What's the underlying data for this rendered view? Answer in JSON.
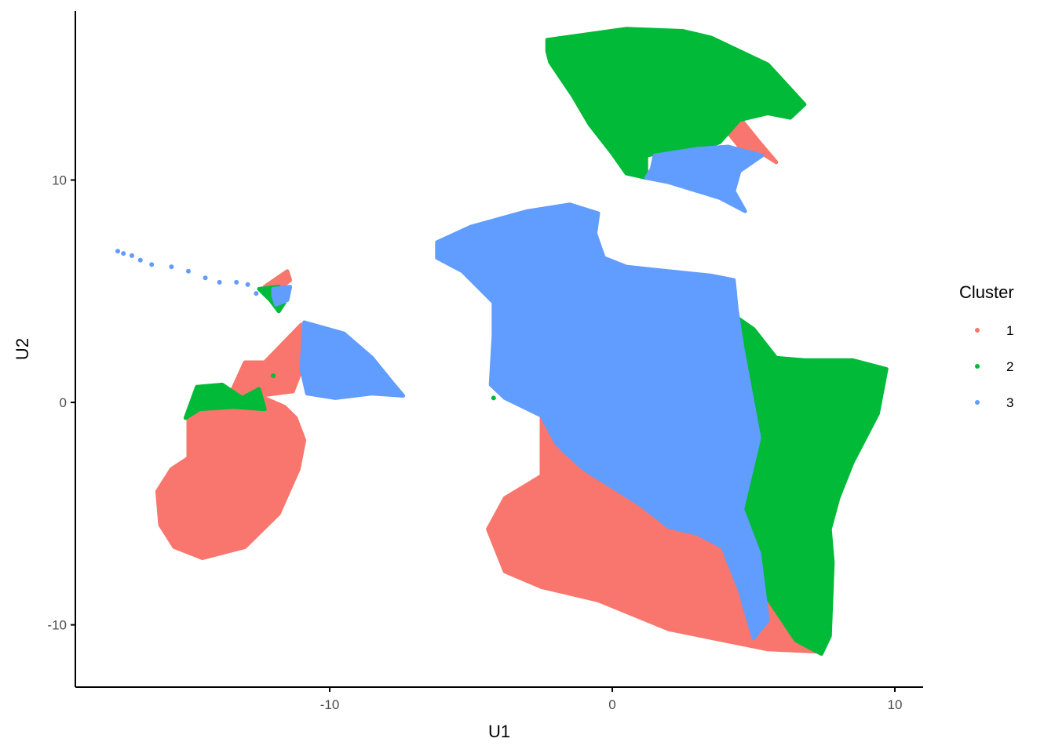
{
  "chart_data": {
    "type": "scatter",
    "xlabel": "U1",
    "ylabel": "U2",
    "xlim": [
      -19,
      11
    ],
    "ylim": [
      -12.8,
      17.6
    ],
    "x_ticks": [
      -10,
      0,
      10
    ],
    "y_ticks": [
      -10,
      0,
      10
    ],
    "x_tick_labels": [
      "-10",
      "0",
      "10"
    ],
    "y_tick_labels": [
      "-10",
      "0",
      "10"
    ],
    "grid": false,
    "legend": {
      "title": "Cluster",
      "placement": "right",
      "entries": [
        {
          "label": "1",
          "color": "#F8766D"
        },
        {
          "label": "2",
          "color": "#00BA38"
        },
        {
          "label": "3",
          "color": "#619CFF"
        }
      ]
    },
    "series": [
      {
        "name": "1",
        "color": "#F8766D",
        "regions": [
          [
            [
              -11,
              3.5
            ],
            [
              -12.3,
              1.8
            ],
            [
              -13,
              1.8
            ],
            [
              -13.5,
              0.4
            ],
            [
              -14.5,
              0.7
            ],
            [
              -15,
              -0.5
            ],
            [
              -15,
              -2.5
            ],
            [
              -15.6,
              -3
            ],
            [
              -16.1,
              -4
            ],
            [
              -16,
              -5.5
            ],
            [
              -15.5,
              -6.5
            ],
            [
              -14.5,
              -7
            ],
            [
              -13,
              -6.5
            ],
            [
              -11.8,
              -5
            ],
            [
              -11.1,
              -3
            ],
            [
              -10.9,
              -1.7
            ],
            [
              -11.2,
              -0.7
            ],
            [
              -11.6,
              -0.2
            ],
            [
              -12.5,
              0.3
            ],
            [
              -11.3,
              0.5
            ],
            [
              -11,
              1.5
            ],
            [
              -10.6,
              2.5
            ]
          ],
          [
            [
              -2.5,
              -0.5
            ],
            [
              -1.5,
              -1.8
            ],
            [
              0.5,
              -2.8
            ],
            [
              2.5,
              -3.9
            ],
            [
              4.5,
              -5.3
            ],
            [
              5.5,
              -7.5
            ],
            [
              6.5,
              -10.8
            ],
            [
              7.2,
              -11.2
            ],
            [
              5.5,
              -11.1
            ],
            [
              2,
              -10.2
            ],
            [
              -0.5,
              -8.9
            ],
            [
              -2.5,
              -8.3
            ],
            [
              -3.8,
              -7.6
            ],
            [
              -4.4,
              -5.7
            ],
            [
              -3.8,
              -4.3
            ],
            [
              -2.5,
              -3.3
            ]
          ],
          [
            [
              1.8,
              2.2
            ],
            [
              3.6,
              4.8
            ],
            [
              4.3,
              4.8
            ],
            [
              4.4,
              3.2
            ],
            [
              3.6,
              -2.3
            ],
            [
              2.4,
              -1.2
            ]
          ],
          [
            [
              4,
              13.5
            ],
            [
              4.5,
              12.8
            ],
            [
              5.2,
              11.7
            ],
            [
              5.8,
              10.8
            ],
            [
              5.3,
              11.2
            ],
            [
              4.5,
              11.5
            ],
            [
              4,
              12.3
            ]
          ],
          [
            [
              -12.3,
              5.2
            ],
            [
              -11.5,
              5.9
            ],
            [
              -11.4,
              5.5
            ],
            [
              -12,
              4.9
            ]
          ]
        ],
        "points": [
          [
            -1.5,
            -4.8
          ],
          [
            0.5,
            -6.3
          ],
          [
            4.6,
            -7.5
          ]
        ]
      },
      {
        "name": "2",
        "color": "#00BA38",
        "regions": [
          [
            [
              -2.3,
              16.3
            ],
            [
              0.5,
              16.8
            ],
            [
              2.5,
              16.7
            ],
            [
              3.5,
              16.4
            ],
            [
              5.5,
              15.2
            ],
            [
              6.8,
              13.4
            ],
            [
              6.3,
              12.8
            ],
            [
              5.5,
              13
            ],
            [
              4.5,
              12.7
            ],
            [
              3.8,
              11.7
            ],
            [
              3,
              11.3
            ],
            [
              2,
              11.3
            ],
            [
              1.2,
              11.1
            ],
            [
              1.2,
              10.1
            ],
            [
              0.5,
              10.3
            ],
            [
              0,
              11.2
            ],
            [
              -0.8,
              12.5
            ],
            [
              -1.4,
              13.8
            ],
            [
              -2.2,
              15.3
            ],
            [
              -2.3,
              15.8
            ]
          ],
          [
            [
              4.2,
              4
            ],
            [
              5,
              3.3
            ],
            [
              5.8,
              2
            ],
            [
              6.8,
              1.9
            ],
            [
              8.5,
              1.9
            ],
            [
              9.7,
              1.5
            ],
            [
              9.4,
              -0.5
            ],
            [
              8.5,
              -2.7
            ],
            [
              8,
              -4.3
            ],
            [
              7.7,
              -5.7
            ],
            [
              7.8,
              -7.2
            ],
            [
              7.7,
              -10.5
            ],
            [
              7.4,
              -11.3
            ],
            [
              6.5,
              -10.7
            ],
            [
              5.5,
              -8.8
            ],
            [
              5,
              -6.5
            ],
            [
              4.7,
              -4.8
            ],
            [
              5.2,
              -1.5
            ],
            [
              4.6,
              1.5
            ],
            [
              4.2,
              3
            ]
          ],
          [
            [
              -15.1,
              -0.7
            ],
            [
              -14.7,
              0.7
            ],
            [
              -13.8,
              0.8
            ],
            [
              -13.1,
              0.2
            ],
            [
              -12.5,
              0.6
            ],
            [
              -12.3,
              -0.3
            ],
            [
              -13.4,
              -0.2
            ],
            [
              -14.6,
              -0.3
            ]
          ],
          [
            [
              -12.5,
              5.1
            ],
            [
              -11.8,
              5.2
            ],
            [
              -11.6,
              4.5
            ],
            [
              -11.8,
              4.1
            ],
            [
              -12.1,
              4.6
            ]
          ]
        ],
        "points": [
          [
            -4.2,
            0.2
          ],
          [
            -3,
            1.3
          ],
          [
            -2,
            1
          ],
          [
            -1.2,
            2.3
          ],
          [
            -0.5,
            2.5
          ],
          [
            0.5,
            1.5
          ],
          [
            1.4,
            0.2
          ],
          [
            2.5,
            -0.5
          ],
          [
            3.2,
            -1.6
          ],
          [
            -0.1,
            0.3
          ],
          [
            1,
            -1.3
          ],
          [
            -1.9,
            0.4
          ],
          [
            -10.3,
            2.3
          ],
          [
            -12,
            1.2
          ]
        ]
      },
      {
        "name": "3",
        "color": "#619CFF",
        "regions": [
          [
            [
              -10.9,
              3.6
            ],
            [
              -9.5,
              3.1
            ],
            [
              -8.5,
              2
            ],
            [
              -7.8,
              0.9
            ],
            [
              -7.4,
              0.3
            ],
            [
              -8.5,
              0.4
            ],
            [
              -9.8,
              0.2
            ],
            [
              -10.8,
              0.4
            ],
            [
              -11,
              1.5
            ]
          ],
          [
            [
              -6.2,
              7.2
            ],
            [
              -5,
              7.9
            ],
            [
              -3,
              8.6
            ],
            [
              -1.5,
              8.9
            ],
            [
              -0.5,
              8.5
            ],
            [
              -0.6,
              7.6
            ],
            [
              -0.3,
              6.5
            ],
            [
              0.5,
              6.1
            ],
            [
              2,
              5.9
            ],
            [
              3.5,
              5.7
            ],
            [
              4.3,
              5.5
            ],
            [
              4.4,
              4.2
            ],
            [
              4.6,
              2.5
            ],
            [
              5.2,
              -1.6
            ],
            [
              4.6,
              -4.8
            ],
            [
              5.2,
              -6.8
            ],
            [
              5.5,
              -9.8
            ],
            [
              5,
              -10.6
            ],
            [
              4.5,
              -8.4
            ],
            [
              3.9,
              -6.5
            ],
            [
              3,
              -5.9
            ],
            [
              2,
              -5.6
            ],
            [
              1,
              -4.6
            ],
            [
              0,
              -3.8
            ],
            [
              -1,
              -3
            ],
            [
              -1.7,
              -2.2
            ],
            [
              -2,
              -1.8
            ],
            [
              -2.5,
              -0.6
            ],
            [
              -3.8,
              0.2
            ],
            [
              -4.3,
              0.8
            ],
            [
              -4.2,
              3
            ],
            [
              -4.2,
              4.5
            ],
            [
              -5.3,
              5.9
            ],
            [
              -6.2,
              6.5
            ]
          ],
          [
            [
              1.5,
              11.1
            ],
            [
              3,
              11.4
            ],
            [
              4.1,
              11.5
            ],
            [
              5.3,
              11.1
            ],
            [
              4.5,
              10.4
            ],
            [
              4.3,
              9.5
            ],
            [
              4.7,
              8.6
            ],
            [
              3.8,
              9.2
            ],
            [
              2,
              9.9
            ],
            [
              1.2,
              10.1
            ],
            [
              1.4,
              10.5
            ]
          ],
          [
            [
              -12,
              5.1
            ],
            [
              -11.4,
              5.2
            ],
            [
              -11.5,
              4.6
            ],
            [
              -11.9,
              4.4
            ],
            [
              -12,
              4.8
            ]
          ]
        ],
        "points": [
          [
            -17.5,
            6.8
          ],
          [
            -17.3,
            6.7
          ],
          [
            -17,
            6.6
          ],
          [
            -16.7,
            6.4
          ],
          [
            -16.3,
            6.2
          ],
          [
            -15.6,
            6.1
          ],
          [
            -15,
            5.9
          ],
          [
            -14.4,
            5.6
          ],
          [
            -13.9,
            5.4
          ],
          [
            -13.3,
            5.4
          ],
          [
            -12.9,
            5.3
          ],
          [
            -12.6,
            4.9
          ]
        ]
      }
    ]
  }
}
